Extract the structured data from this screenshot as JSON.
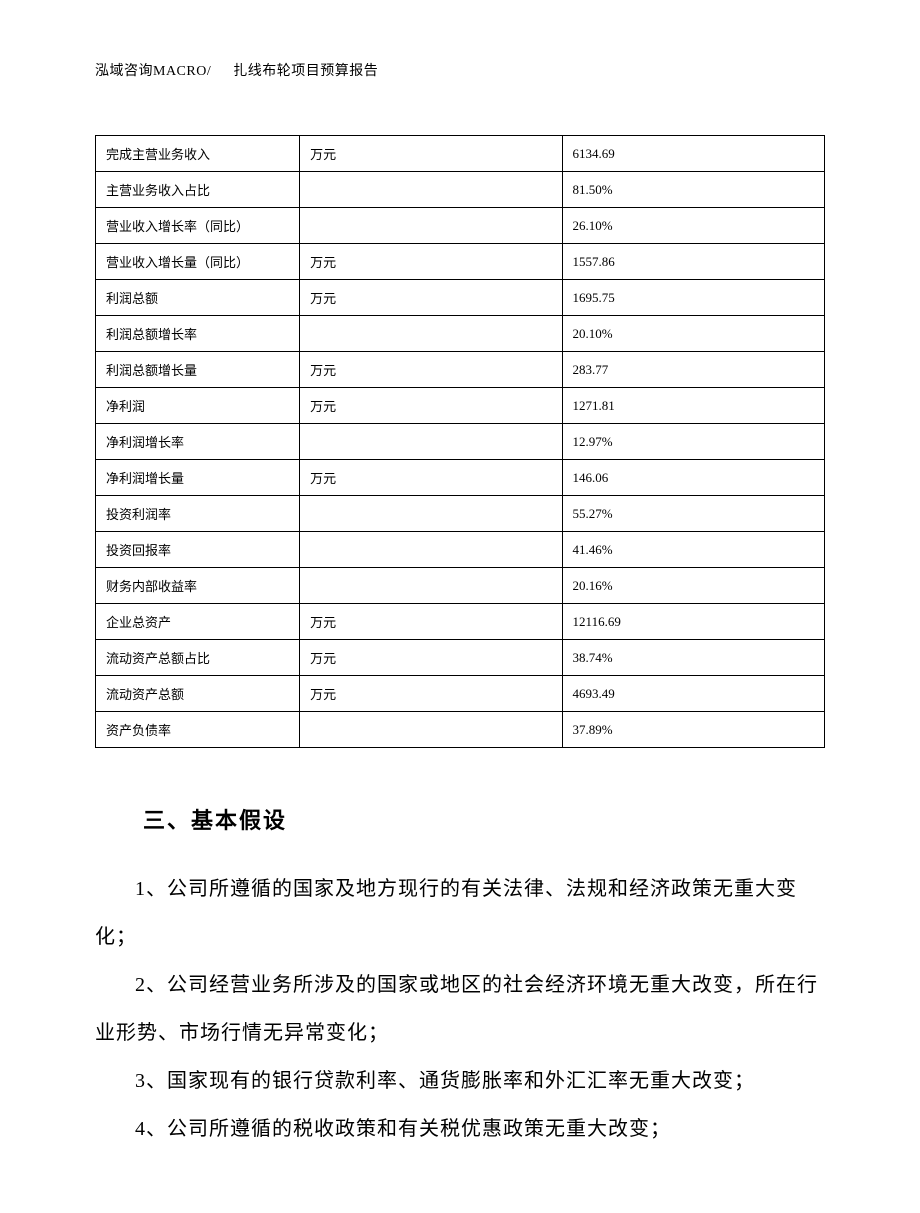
{
  "header": {
    "company": "泓域咨询MACRO/",
    "title": "扎线布轮项目预算报告"
  },
  "table": {
    "rows": [
      {
        "label": "完成主营业务收入",
        "unit": "万元",
        "value": "6134.69"
      },
      {
        "label": "主营业务收入占比",
        "unit": "",
        "value": "81.50%"
      },
      {
        "label": "营业收入增长率（同比）",
        "unit": "",
        "value": "26.10%"
      },
      {
        "label": "营业收入增长量（同比）",
        "unit": "万元",
        "value": "1557.86"
      },
      {
        "label": "利润总额",
        "unit": "万元",
        "value": "1695.75"
      },
      {
        "label": "利润总额增长率",
        "unit": "",
        "value": "20.10%"
      },
      {
        "label": "利润总额增长量",
        "unit": "万元",
        "value": "283.77"
      },
      {
        "label": "净利润",
        "unit": "万元",
        "value": "1271.81"
      },
      {
        "label": "净利润增长率",
        "unit": "",
        "value": "12.97%"
      },
      {
        "label": "净利润增长量",
        "unit": "万元",
        "value": "146.06"
      },
      {
        "label": "投资利润率",
        "unit": "",
        "value": "55.27%"
      },
      {
        "label": "投资回报率",
        "unit": "",
        "value": "41.46%"
      },
      {
        "label": "财务内部收益率",
        "unit": "",
        "value": "20.16%"
      },
      {
        "label": "企业总资产",
        "unit": "万元",
        "value": "12116.69"
      },
      {
        "label": "流动资产总额占比",
        "unit": "万元",
        "value": "38.74%"
      },
      {
        "label": "流动资产总额",
        "unit": "万元",
        "value": "4693.49"
      },
      {
        "label": "资产负债率",
        "unit": "",
        "value": "37.89%"
      }
    ]
  },
  "section": {
    "heading": "三、基本假设",
    "paragraphs": [
      "1、公司所遵循的国家及地方现行的有关法律、法规和经济政策无重大变化；",
      "2、公司经营业务所涉及的国家或地区的社会经济环境无重大改变，所在行业形势、市场行情无异常变化；",
      "3、国家现有的银行贷款利率、通货膨胀率和外汇汇率无重大改变；",
      "4、公司所遵循的税收政策和有关税优惠政策无重大改变；"
    ]
  }
}
